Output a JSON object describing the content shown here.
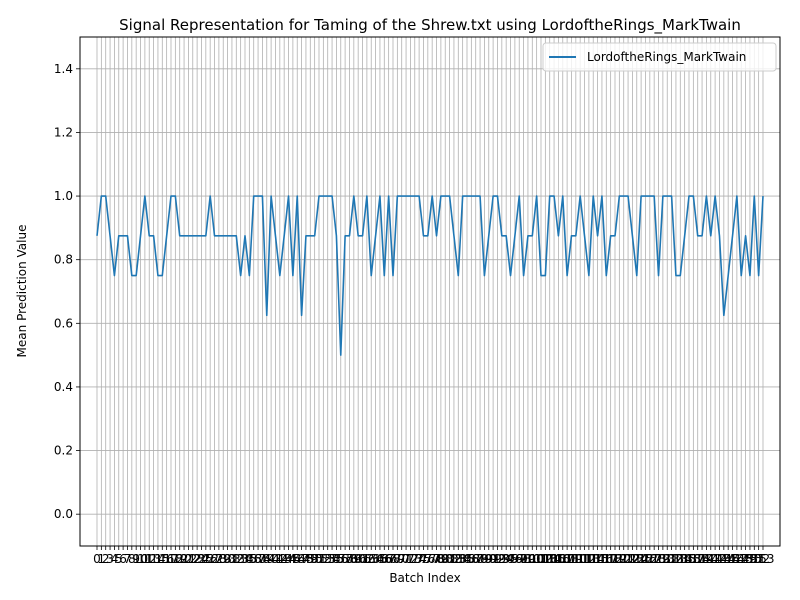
{
  "chart_data": {
    "type": "line",
    "title": "Signal Representation for Taming of the Shrew.txt using LordoftheRings_MarkTwain",
    "xlabel": "Batch Index",
    "ylabel": "Mean Prediction Value",
    "ylim": [
      -0.1,
      1.5
    ],
    "yticks": [
      "0.0",
      "0.2",
      "0.4",
      "0.6",
      "0.8",
      "1.0",
      "1.2",
      "1.4"
    ],
    "grid": true,
    "legend_position": "upper-right",
    "series": [
      {
        "name": "LordoftheRings_MarkTwain",
        "color": "#1f77b4",
        "values": [
          0.875,
          1.0,
          1.0,
          0.875,
          0.75,
          0.875,
          0.875,
          0.875,
          0.75,
          0.75,
          0.875,
          1.0,
          0.875,
          0.875,
          0.75,
          0.75,
          0.875,
          1.0,
          1.0,
          0.875,
          0.875,
          0.875,
          0.875,
          0.875,
          0.875,
          0.875,
          1.0,
          0.875,
          0.875,
          0.875,
          0.875,
          0.875,
          0.875,
          0.75,
          0.875,
          0.75,
          1.0,
          1.0,
          1.0,
          0.625,
          1.0,
          0.875,
          0.75,
          0.875,
          1.0,
          0.75,
          1.0,
          0.625,
          0.875,
          0.875,
          0.875,
          1.0,
          1.0,
          1.0,
          1.0,
          0.875,
          0.5,
          0.875,
          0.875,
          1.0,
          0.875,
          0.875,
          1.0,
          0.75,
          0.875,
          1.0,
          0.75,
          1.0,
          0.75,
          1.0,
          1.0,
          1.0,
          1.0,
          1.0,
          1.0,
          0.875,
          0.875,
          1.0,
          0.875,
          1.0,
          1.0,
          1.0,
          0.875,
          0.75,
          1.0,
          1.0,
          1.0,
          1.0,
          1.0,
          0.75,
          0.875,
          1.0,
          1.0,
          0.875,
          0.875,
          0.75,
          0.875,
          1.0,
          0.75,
          0.875,
          0.875,
          1.0,
          0.75,
          0.75,
          1.0,
          1.0,
          0.875,
          1.0,
          0.75,
          0.875,
          0.875,
          1.0,
          0.875,
          0.75,
          1.0,
          0.875,
          1.0,
          0.75,
          0.875,
          0.875,
          1.0,
          1.0,
          1.0,
          0.875,
          0.75,
          1.0,
          1.0,
          1.0,
          1.0,
          0.75,
          1.0,
          1.0,
          1.0,
          0.75,
          0.75,
          0.875,
          1.0,
          1.0,
          0.875,
          0.875,
          1.0,
          0.875,
          1.0,
          0.875,
          0.625,
          0.75,
          0.875,
          1.0,
          0.75,
          0.875,
          0.75,
          1.0,
          0.75,
          1.0
        ]
      }
    ]
  }
}
